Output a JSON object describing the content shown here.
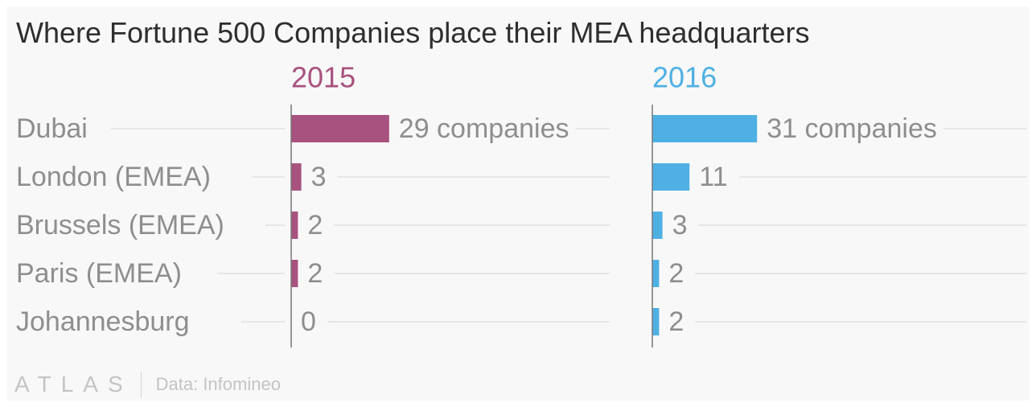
{
  "title": "Where Fortune 500 Companies place their MEA headquarters",
  "footer": {
    "brand": "ATLAS",
    "source": "Data: Infomineo"
  },
  "colors": {
    "series_2015": "#a8527f",
    "series_2016": "#4fb0e3",
    "label": "#8e8e8e",
    "grid": "#e6e6e6",
    "axis": "#777777"
  },
  "chart_data": {
    "type": "bar",
    "orientation": "horizontal",
    "categories": [
      "Dubai",
      "London (EMEA)",
      "Brussels (EMEA)",
      "Paris (EMEA)",
      "Johannesburg"
    ],
    "series": [
      {
        "name": "2015",
        "values": [
          29,
          3,
          2,
          2,
          0
        ],
        "labels": [
          "29 companies",
          "3",
          "2",
          "2",
          "0"
        ]
      },
      {
        "name": "2016",
        "values": [
          31,
          11,
          3,
          2,
          2
        ],
        "labels": [
          "31 companies",
          "11",
          "3",
          "2",
          "2"
        ]
      }
    ]
  }
}
